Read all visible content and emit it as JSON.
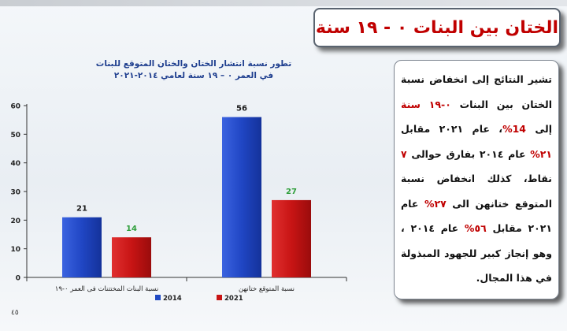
{
  "title": "الختان بين البنات ٠ - ١٩ سنة",
  "description_parts": [
    {
      "text": "تشير النتائج إلى انخفاض نسبة الختان بين البنات ",
      "style": "normal"
    },
    {
      "text": "٠-١٩ سنة",
      "style": "red"
    },
    {
      "text": " إلى ",
      "style": "normal"
    },
    {
      "text": "14%",
      "style": "red"
    },
    {
      "text": "، عام ٢٠٢١ مقابل ",
      "style": "normal"
    },
    {
      "text": "٢١%",
      "style": "red"
    },
    {
      "text": " عام ٢٠١٤ بفارق حوالى ",
      "style": "normal"
    },
    {
      "text": "٧",
      "style": "red"
    },
    {
      "text": " نقاط، كذلك انخفاض نسبة المتوقع ختانهن الى ",
      "style": "normal"
    },
    {
      "text": "٢٧%",
      "style": "red"
    },
    {
      "text": " عام ٢٠٢١ مقابل ",
      "style": "normal"
    },
    {
      "text": "٥٦%",
      "style": "red"
    },
    {
      "text": " عام ٢٠١٤ ، وهو إنجاز كبير للجهود المبذولة في هذا المجال.",
      "style": "normal"
    }
  ],
  "page_number": "٤٥",
  "chart_data": {
    "type": "bar",
    "title": "تطور نسبة انتشار الختان والختان المتوقع للبنات",
    "subtitle": "في العمر ٠ – ١٩ سنة لعامي ٢٠١٤-٢٠٢١",
    "categories": [
      "نسبة البنات المختتنات فى العمر ٠-١٩",
      "نسبة المتوقع ختانهن"
    ],
    "series": [
      {
        "name": "2014",
        "values": [
          21,
          56
        ],
        "color": "#1f49c2"
      },
      {
        "name": "2021",
        "values": [
          14,
          27
        ],
        "color": "#c81414"
      }
    ],
    "data_label_colors": [
      "#1a1a1a",
      "#2e9e3a"
    ],
    "y_ticks": [
      0,
      10,
      20,
      30,
      40,
      50,
      60
    ],
    "ylim": [
      0,
      60
    ],
    "legend_position": "bottom",
    "grid": false
  }
}
